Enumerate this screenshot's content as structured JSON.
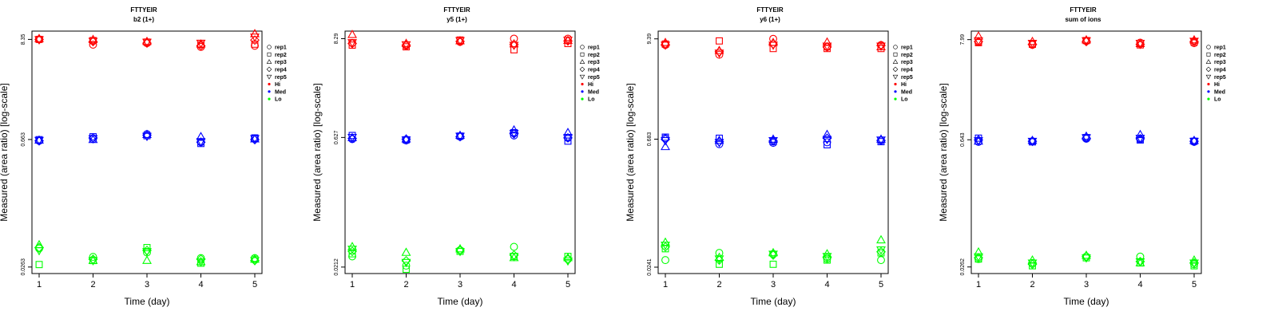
{
  "colors": {
    "Hi": "#ff0000",
    "Med": "#0000ff",
    "Lo": "#00ff00"
  },
  "legend": {
    "position": "right",
    "entries": [
      {
        "label": "rep1",
        "marker": "circle"
      },
      {
        "label": "rep2",
        "marker": "square"
      },
      {
        "label": "rep3",
        "marker": "triangle-up"
      },
      {
        "label": "rep4",
        "marker": "diamond"
      },
      {
        "label": "rep5",
        "marker": "triangle-down"
      },
      {
        "label": "Hi",
        "marker": "dot",
        "color": "#ff0000"
      },
      {
        "label": "Med",
        "marker": "dot",
        "color": "#0000ff"
      },
      {
        "label": "Lo",
        "marker": "dot",
        "color": "#00ff00"
      }
    ]
  },
  "chart_data": [
    {
      "type": "scatter",
      "title": "FTTYEIR",
      "subtitle": "b2 (1+)",
      "xlabel": "Time (day)",
      "ylabel": "Measured (area ratio) [log-scale]",
      "y_scale": "log",
      "grid": false,
      "x_ticks": [
        1,
        2,
        3,
        4,
        5
      ],
      "y_ticks": [
        0.0263,
        0.663,
        8.35
      ],
      "y_tick_labels": [
        "0.0263",
        "0.663",
        "8.35"
      ],
      "ylim": [
        0.0223,
        10.3
      ],
      "x": [
        1,
        2,
        3,
        4,
        5
      ],
      "series": [
        {
          "group": "Hi",
          "rep": "rep1",
          "values": [
            8.35,
            7.3,
            7.6,
            6.9,
            7.1
          ]
        },
        {
          "group": "Hi",
          "rep": "rep2",
          "values": [
            8.35,
            8.1,
            7.8,
            7.3,
            7.4
          ]
        },
        {
          "group": "Hi",
          "rep": "rep3",
          "values": [
            8.5,
            8.3,
            7.9,
            7.4,
            9.6
          ]
        },
        {
          "group": "Hi",
          "rep": "rep4",
          "values": [
            8.35,
            7.9,
            7.6,
            7.1,
            8.2
          ]
        },
        {
          "group": "Hi",
          "rep": "rep5",
          "values": [
            8.3,
            8.0,
            7.8,
            7.6,
            8.9
          ]
        },
        {
          "group": "Med",
          "rep": "rep1",
          "values": [
            0.64,
            0.67,
            0.76,
            0.62,
            0.68
          ]
        },
        {
          "group": "Med",
          "rep": "rep2",
          "values": [
            0.66,
            0.71,
            0.73,
            0.6,
            0.69
          ]
        },
        {
          "group": "Med",
          "rep": "rep3",
          "values": [
            0.65,
            0.66,
            0.75,
            0.71,
            0.67
          ]
        },
        {
          "group": "Med",
          "rep": "rep4",
          "values": [
            0.64,
            0.69,
            0.74,
            0.62,
            0.66
          ]
        },
        {
          "group": "Med",
          "rep": "rep5",
          "values": [
            0.65,
            0.68,
            0.72,
            0.63,
            0.68
          ]
        },
        {
          "group": "Lo",
          "rep": "rep1",
          "values": [
            0.042,
            0.034,
            0.038,
            0.033,
            0.033
          ]
        },
        {
          "group": "Lo",
          "rep": "rep2",
          "values": [
            0.028,
            0.031,
            0.043,
            0.029,
            0.032
          ]
        },
        {
          "group": "Lo",
          "rep": "rep3",
          "values": [
            0.046,
            0.031,
            0.031,
            0.03,
            0.032
          ]
        },
        {
          "group": "Lo",
          "rep": "rep4",
          "values": [
            0.043,
            0.032,
            0.04,
            0.032,
            0.031
          ]
        },
        {
          "group": "Lo",
          "rep": "rep5",
          "values": [
            0.04,
            0.031,
            0.039,
            0.03,
            0.031
          ]
        }
      ]
    },
    {
      "type": "scatter",
      "title": "FTTYEIR",
      "subtitle": "y5 (1+)",
      "xlabel": "Time (day)",
      "ylabel": "Measured (area ratio) [log-scale]",
      "y_scale": "log",
      "grid": false,
      "x_ticks": [
        1,
        2,
        3,
        4,
        5
      ],
      "y_ticks": [
        0.0212,
        0.627,
        8.29
      ],
      "y_tick_labels": [
        "0.0212",
        "0.627",
        "8.29"
      ],
      "ylim": [
        0.0179,
        10.1
      ],
      "x": [
        1,
        2,
        3,
        4,
        5
      ],
      "series": [
        {
          "group": "Hi",
          "rep": "rep1",
          "values": [
            7.4,
            6.9,
            7.6,
            8.3,
            8.3
          ]
        },
        {
          "group": "Hi",
          "rep": "rep2",
          "values": [
            7.0,
            6.7,
            8.0,
            6.2,
            7.3
          ]
        },
        {
          "group": "Hi",
          "rep": "rep3",
          "values": [
            9.2,
            7.3,
            7.8,
            7.2,
            7.9
          ]
        },
        {
          "group": "Hi",
          "rep": "rep4",
          "values": [
            7.3,
            7.0,
            7.7,
            7.1,
            7.8
          ]
        },
        {
          "group": "Hi",
          "rep": "rep5",
          "values": [
            7.5,
            7.1,
            7.9,
            7.0,
            8.0
          ]
        },
        {
          "group": "Med",
          "rep": "rep1",
          "values": [
            0.6,
            0.58,
            0.64,
            0.66,
            0.62
          ]
        },
        {
          "group": "Med",
          "rep": "rep2",
          "values": [
            0.66,
            0.59,
            0.65,
            0.71,
            0.57
          ]
        },
        {
          "group": "Med",
          "rep": "rep3",
          "values": [
            0.62,
            0.6,
            0.66,
            0.76,
            0.71
          ]
        },
        {
          "group": "Med",
          "rep": "rep4",
          "values": [
            0.61,
            0.6,
            0.64,
            0.69,
            0.62
          ]
        },
        {
          "group": "Med",
          "rep": "rep5",
          "values": [
            0.63,
            0.59,
            0.65,
            0.7,
            0.63
          ]
        },
        {
          "group": "Lo",
          "rep": "rep1",
          "values": [
            0.028,
            0.022,
            0.033,
            0.036,
            0.026
          ]
        },
        {
          "group": "Lo",
          "rep": "rep2",
          "values": [
            0.03,
            0.02,
            0.032,
            0.028,
            0.028
          ]
        },
        {
          "group": "Lo",
          "rep": "rep3",
          "values": [
            0.036,
            0.031,
            0.034,
            0.027,
            0.027
          ]
        },
        {
          "group": "Lo",
          "rep": "rep4",
          "values": [
            0.032,
            0.025,
            0.033,
            0.029,
            0.026
          ]
        },
        {
          "group": "Lo",
          "rep": "rep5",
          "values": [
            0.034,
            0.024,
            0.032,
            0.028,
            0.025
          ]
        }
      ]
    },
    {
      "type": "scatter",
      "title": "FTTYEIR",
      "subtitle": "y6 (1+)",
      "xlabel": "Time (day)",
      "ylabel": "Measured (area ratio) [log-scale]",
      "y_scale": "log",
      "grid": false,
      "x_ticks": [
        1,
        2,
        3,
        4,
        5
      ],
      "y_ticks": [
        0.0241,
        0.683,
        9.39
      ],
      "y_tick_labels": [
        "0.0241",
        "0.683",
        "9.39"
      ],
      "ylim": [
        0.0204,
        11.5
      ],
      "x": [
        1,
        2,
        3,
        4,
        5
      ],
      "series": [
        {
          "group": "Hi",
          "rep": "rep1",
          "values": [
            8.0,
            6.2,
            9.4,
            7.6,
            8.0
          ]
        },
        {
          "group": "Hi",
          "rep": "rep2",
          "values": [
            8.2,
            8.9,
            7.3,
            7.3,
            7.3
          ]
        },
        {
          "group": "Hi",
          "rep": "rep3",
          "values": [
            8.5,
            6.9,
            8.5,
            8.6,
            7.6
          ]
        },
        {
          "group": "Hi",
          "rep": "rep4",
          "values": [
            8.1,
            6.7,
            8.2,
            7.6,
            7.9
          ]
        },
        {
          "group": "Hi",
          "rep": "rep5",
          "values": [
            8.0,
            6.5,
            8.0,
            7.8,
            7.8
          ]
        },
        {
          "group": "Med",
          "rep": "rep1",
          "values": [
            0.7,
            0.6,
            0.62,
            0.63,
            0.66
          ]
        },
        {
          "group": "Med",
          "rep": "rep2",
          "values": [
            0.72,
            0.7,
            0.64,
            0.59,
            0.64
          ]
        },
        {
          "group": "Med",
          "rep": "rep3",
          "values": [
            0.56,
            0.66,
            0.68,
            0.77,
            0.68
          ]
        },
        {
          "group": "Med",
          "rep": "rep4",
          "values": [
            0.68,
            0.64,
            0.65,
            0.7,
            0.66
          ]
        },
        {
          "group": "Med",
          "rep": "rep5",
          "values": [
            0.66,
            0.63,
            0.66,
            0.68,
            0.67
          ]
        },
        {
          "group": "Lo",
          "rep": "rep1",
          "values": [
            0.029,
            0.035,
            0.034,
            0.03,
            0.029
          ]
        },
        {
          "group": "Lo",
          "rep": "rep2",
          "values": [
            0.039,
            0.026,
            0.026,
            0.029,
            0.035
          ]
        },
        {
          "group": "Lo",
          "rep": "rep3",
          "values": [
            0.046,
            0.031,
            0.035,
            0.034,
            0.049
          ]
        },
        {
          "group": "Lo",
          "rep": "rep4",
          "values": [
            0.041,
            0.029,
            0.033,
            0.031,
            0.036
          ]
        },
        {
          "group": "Lo",
          "rep": "rep5",
          "values": [
            0.043,
            0.03,
            0.034,
            0.032,
            0.038
          ]
        }
      ]
    },
    {
      "type": "scatter",
      "title": "FTTYEIR",
      "subtitle": "sum of ions",
      "xlabel": "Time (day)",
      "ylabel": "Measured (area ratio) [log-scale]",
      "y_scale": "log",
      "grid": false,
      "x_ticks": [
        1,
        2,
        3,
        4,
        5
      ],
      "y_ticks": [
        0.0262,
        0.643,
        7.99
      ],
      "y_tick_labels": [
        "0.0262",
        "0.643",
        "7.99"
      ],
      "ylim": [
        0.0222,
        9.9
      ],
      "x": [
        1,
        2,
        3,
        4,
        5
      ],
      "series": [
        {
          "group": "Hi",
          "rep": "rep1",
          "values": [
            7.5,
            7.0,
            7.7,
            7.4,
            7.3
          ]
        },
        {
          "group": "Hi",
          "rep": "rep2",
          "values": [
            7.4,
            7.1,
            7.8,
            7.0,
            7.5
          ]
        },
        {
          "group": "Hi",
          "rep": "rep3",
          "values": [
            8.7,
            7.6,
            7.9,
            7.2,
            7.9
          ]
        },
        {
          "group": "Hi",
          "rep": "rep4",
          "values": [
            7.6,
            7.1,
            7.6,
            7.1,
            7.6
          ]
        },
        {
          "group": "Hi",
          "rep": "rep5",
          "values": [
            7.8,
            7.3,
            7.8,
            7.3,
            7.7
          ]
        },
        {
          "group": "Med",
          "rep": "rep1",
          "values": [
            0.61,
            0.62,
            0.66,
            0.65,
            0.61
          ]
        },
        {
          "group": "Med",
          "rep": "rep2",
          "values": [
            0.67,
            0.61,
            0.68,
            0.64,
            0.62
          ]
        },
        {
          "group": "Med",
          "rep": "rep3",
          "values": [
            0.62,
            0.63,
            0.7,
            0.73,
            0.63
          ]
        },
        {
          "group": "Med",
          "rep": "rep4",
          "values": [
            0.64,
            0.62,
            0.67,
            0.66,
            0.62
          ]
        },
        {
          "group": "Med",
          "rep": "rep5",
          "values": [
            0.63,
            0.62,
            0.68,
            0.67,
            0.62
          ]
        },
        {
          "group": "Lo",
          "rep": "rep1",
          "values": [
            0.032,
            0.029,
            0.034,
            0.034,
            0.028
          ]
        },
        {
          "group": "Lo",
          "rep": "rep2",
          "values": [
            0.032,
            0.027,
            0.033,
            0.029,
            0.027
          ]
        },
        {
          "group": "Lo",
          "rep": "rep3",
          "values": [
            0.038,
            0.031,
            0.035,
            0.029,
            0.031
          ]
        },
        {
          "group": "Lo",
          "rep": "rep4",
          "values": [
            0.033,
            0.028,
            0.034,
            0.03,
            0.029
          ]
        },
        {
          "group": "Lo",
          "rep": "rep5",
          "values": [
            0.034,
            0.029,
            0.033,
            0.03,
            0.029
          ]
        }
      ]
    }
  ]
}
